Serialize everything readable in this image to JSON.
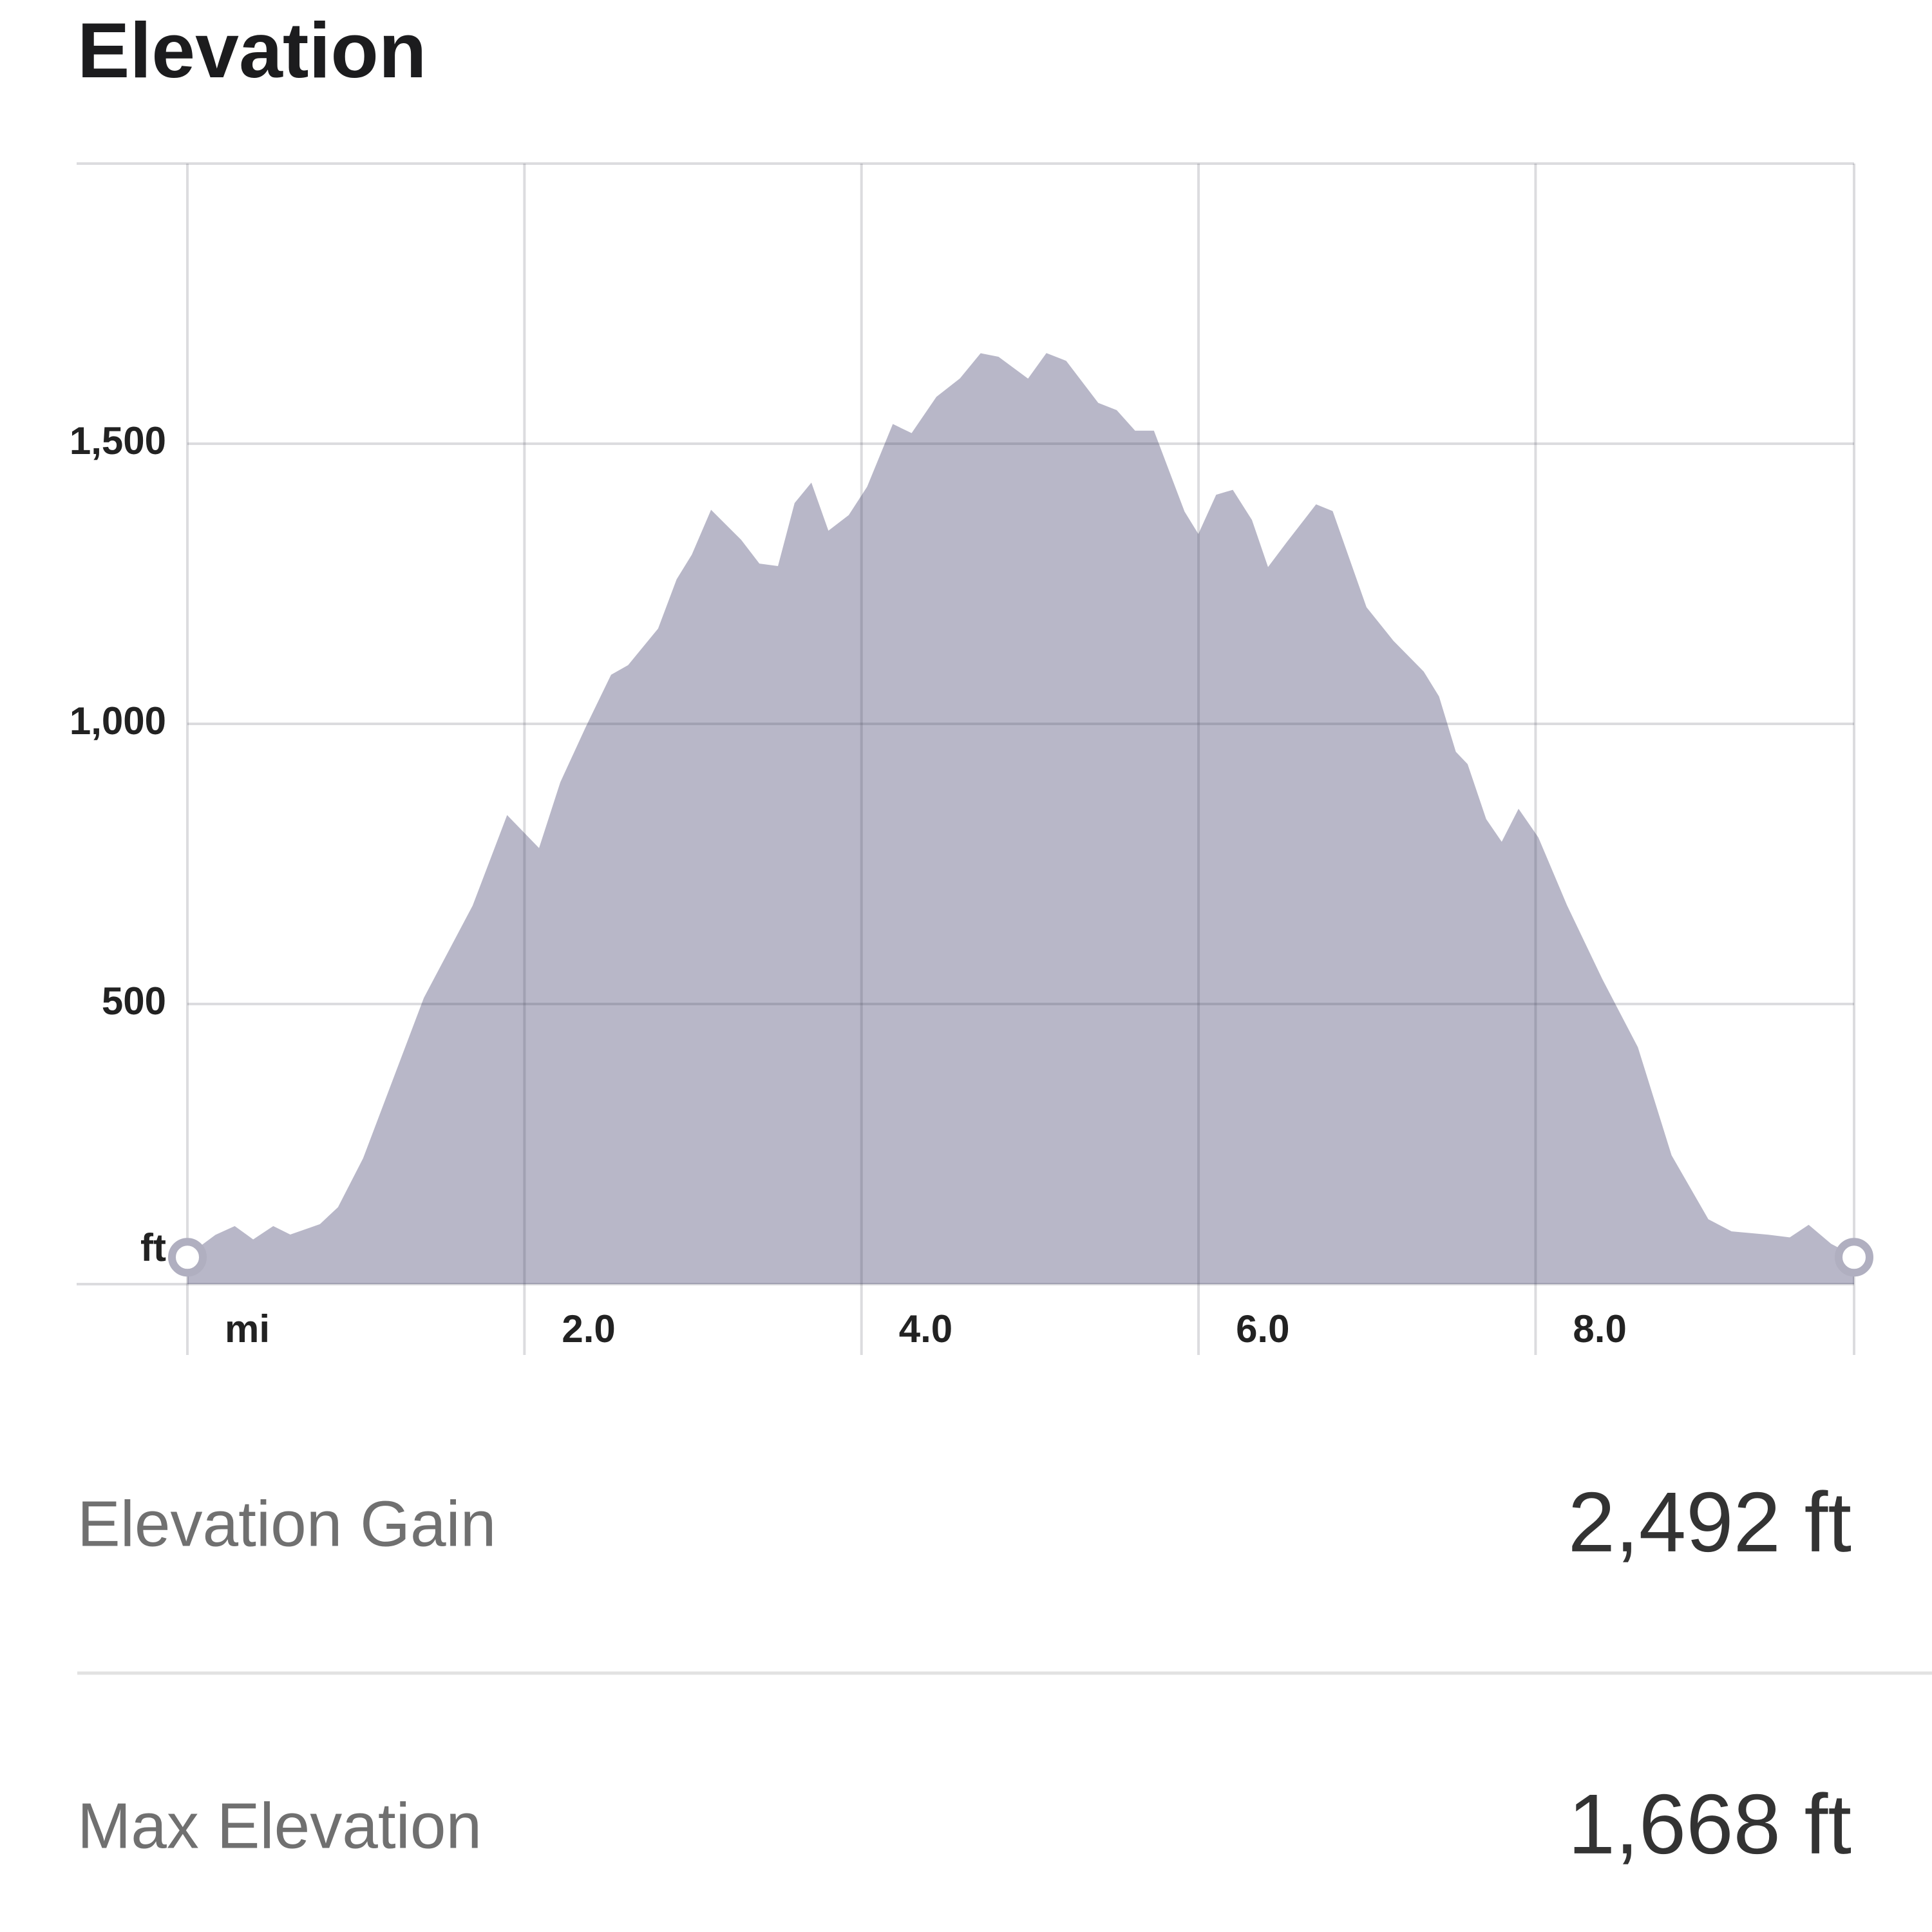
{
  "chart_data": {
    "type": "area",
    "title": "Elevation",
    "color": "#b8b7c8",
    "x": [
      0,
      0.17,
      0.28,
      0.39,
      0.51,
      0.61,
      0.79,
      0.9,
      1.05,
      1.23,
      1.41,
      1.7,
      1.9,
      2.09,
      2.22,
      2.37,
      2.52,
      2.62,
      2.8,
      2.91,
      3.0,
      3.11,
      3.28,
      3.39,
      3.51,
      3.61,
      3.7,
      3.8,
      3.93,
      4.04,
      4.19,
      4.3,
      4.45,
      4.59,
      4.71,
      4.81,
      4.99,
      5.1,
      5.21,
      5.4,
      5.51,
      5.62,
      5.73,
      5.91,
      6.0,
      6.11,
      6.2,
      6.31,
      6.41,
      6.53,
      6.7,
      6.79,
      6.99,
      7.15,
      7.33,
      7.42,
      7.52,
      7.59,
      7.7,
      7.8,
      7.9,
      8.01,
      8.18,
      8.39,
      8.6,
      8.8,
      9.02,
      9.16,
      9.38,
      9.51,
      9.62,
      9.75,
      9.89
    ],
    "values": [
      48,
      86,
      101,
      77,
      101,
      86,
      105,
      136,
      224,
      367,
      510,
      675,
      833,
      774,
      895,
      993,
      1086,
      1103,
      1169,
      1257,
      1301,
      1378,
      1327,
      1284,
      1279,
      1393,
      1426,
      1341,
      1371,
      1422,
      1532,
      1516,
      1582,
      1615,
      1659,
      1653,
      1613,
      1659,
      1646,
      1571,
      1558,
      1521,
      1521,
      1378,
      1334,
      1407,
      1415,
      1363,
      1275,
      1323,
      1389,
      1378,
      1207,
      1147,
      1092,
      1048,
      949,
      927,
      829,
      785,
      844,
      796,
      675,
      543,
      422,
      229,
      114,
      92,
      86,
      81,
      103,
      70,
      48
    ],
    "xlim": [
      0,
      9.89
    ],
    "ylim": [
      0,
      2000
    ],
    "xticks": [
      {
        "value": 0,
        "label": "mi"
      },
      {
        "value": 2,
        "label": "2.0"
      },
      {
        "value": 4,
        "label": "4.0"
      },
      {
        "value": 6,
        "label": "6.0"
      },
      {
        "value": 8,
        "label": "8.0"
      }
    ],
    "yticks": [
      {
        "value": 0,
        "label": "ft"
      },
      500,
      {
        "value": 1000,
        "label": "1,000"
      },
      {
        "value": 1500,
        "label": "1,500"
      }
    ],
    "grid": true
  },
  "stats": [
    {
      "label": "Elevation Gain",
      "value": "2,492 ft"
    },
    {
      "label": "Max Elevation",
      "value": "1,668 ft"
    }
  ]
}
